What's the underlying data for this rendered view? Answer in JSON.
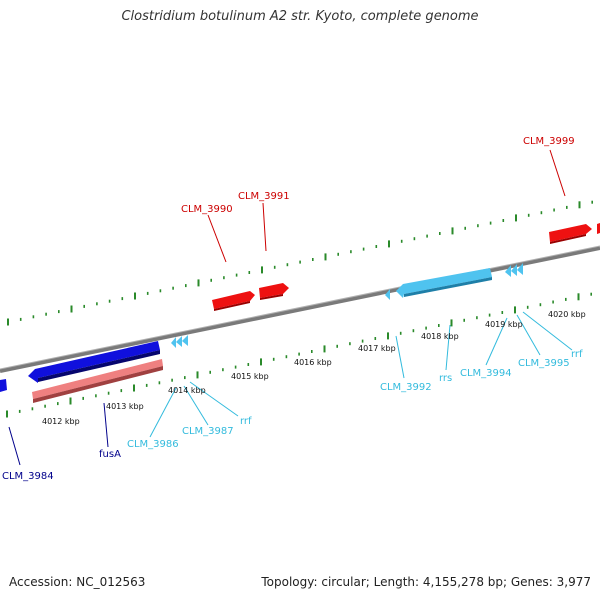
{
  "title": "Clostridium botulinum A2 str. Kyoto, complete genome",
  "footer": {
    "accession": "Accession: NC_012563",
    "summary": "Topology: circular; Length: 4,155,278 bp; Genes: 3,977"
  },
  "colors": {
    "backbone": "#8a8a8a",
    "ticks": "#2a8a2a",
    "forward_cds": "#ee1111",
    "reverse_cds": "#4fc3ef",
    "forward_gene_dark": "#1010dd",
    "reverse_rna": "#ef8080",
    "label_red": "#cc0000",
    "label_cyan": "#33bbdd",
    "label_blue": "#00008b"
  },
  "ruler": [
    "4012 kbp",
    "4013 kbp",
    "4014 kbp",
    "4015 kbp",
    "4016 kbp",
    "4017 kbp",
    "4018 kbp",
    "4019 kbp",
    "4020 kbp"
  ],
  "labels": {
    "clm_3999": "CLM_3999",
    "clm_3991": "CLM_3991",
    "clm_3990": "CLM_3990",
    "clm_3992": "CLM_3992",
    "rrs": "rrs",
    "clm_3994": "CLM_3994",
    "clm_3995": "CLM_3995",
    "rrf_right": "rrf",
    "clm_3986": "CLM_3986",
    "clm_3987": "CLM_3987",
    "rrf_left": "rrf",
    "clm_3984": "CLM_3984",
    "fusA": "fusA",
    "kbp_4012": "4012 kbp",
    "kbp_4013": "4013 kbp",
    "kbp_4014": "4014 kbp",
    "kbp_4015": "4015 kbp",
    "kbp_4016": "4016 kbp",
    "kbp_4017": "4017 kbp",
    "kbp_4018": "4018 kbp",
    "kbp_4019": "4019 kbp",
    "kbp_4020": "4020 kbp"
  }
}
